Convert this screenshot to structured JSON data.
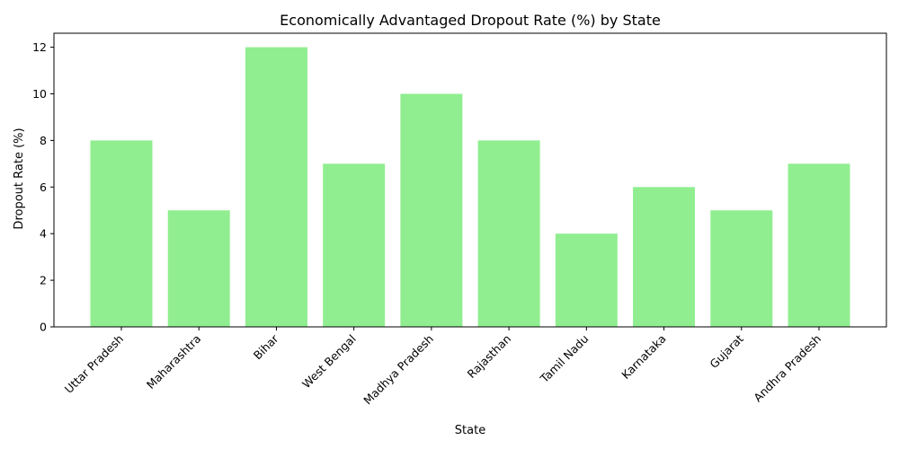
{
  "chart_data": {
    "type": "bar",
    "title": "Economically Advantaged Dropout Rate (%) by State",
    "xlabel": "State",
    "ylabel": "Dropout Rate (%)",
    "categories": [
      "Uttar Pradesh",
      "Maharashtra",
      "Bihar",
      "West Bengal",
      "Madhya Pradesh",
      "Rajasthan",
      "Tamil Nadu",
      "Karnataka",
      "Gujarat",
      "Andhra Pradesh"
    ],
    "values": [
      8,
      5,
      12,
      7,
      10,
      8,
      4,
      6,
      5,
      7
    ],
    "ylim": [
      0,
      12.6
    ],
    "yticks": [
      0,
      2,
      4,
      6,
      8,
      10,
      12
    ],
    "bar_color": "#90ee90",
    "grid": false,
    "legend": "none"
  }
}
